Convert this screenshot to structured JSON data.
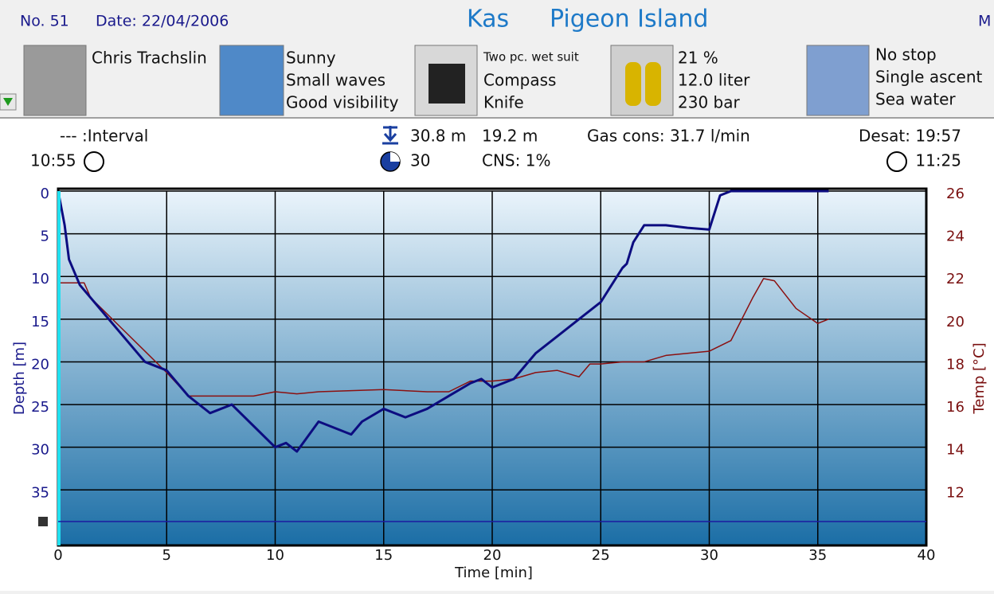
{
  "header": {
    "number": "No. 51",
    "date": "Date: 22/04/2006",
    "location": "Kas",
    "site": "Pigeon Island",
    "right": "M"
  },
  "info": [
    {
      "lines": [
        "Chris Trachslin"
      ]
    },
    {
      "lines": [
        "Sunny",
        "Small waves",
        "Good visibility"
      ]
    },
    {
      "lines": [
        "Two pc. wet suit",
        "Compass",
        "Knife"
      ]
    },
    {
      "lines": [
        "21 %",
        "12.0 liter",
        "230 bar"
      ]
    },
    {
      "lines": [
        "No stop",
        "Single ascent",
        "Sea water"
      ]
    }
  ],
  "stats": {
    "interval": "--- :Interval",
    "start": "10:55",
    "max_depth": "30.8 m",
    "avg_depth": "19.2 m",
    "duration": "30",
    "cns": "CNS:  1%",
    "gas": "Gas cons: 31.7 l/min",
    "desat": "Desat: 19:57",
    "end": "11:25"
  },
  "chart_data": {
    "type": "line",
    "xlabel": "Time [min]",
    "xlim": [
      0,
      40
    ],
    "xticks": [
      0,
      5,
      10,
      15,
      20,
      25,
      30,
      35,
      40
    ],
    "ylim": [
      0,
      41.5
    ],
    "yticks": [
      0,
      5,
      10,
      15,
      20,
      25,
      30,
      35
    ],
    "y_inverted": true,
    "y2lim": [
      9.4,
      26
    ],
    "y2ticks": [
      12,
      14,
      16,
      18,
      20,
      22,
      24,
      26
    ],
    "grid": true,
    "series": [
      {
        "name": "Depth [m]",
        "color": "#0c0c80",
        "x": [
          0,
          0.3,
          0.5,
          1,
          2,
          3,
          4,
          5,
          6,
          7,
          8,
          9,
          10,
          10.5,
          11,
          12,
          13,
          13.5,
          14,
          15,
          16,
          17,
          18,
          19,
          19.5,
          20,
          20.5,
          21,
          22,
          23,
          24,
          25,
          26,
          26.2,
          26.5,
          27,
          28,
          29,
          30,
          30.5,
          31,
          35.5
        ],
        "values": [
          0,
          4,
          8,
          11,
          14,
          17,
          20,
          21,
          24,
          26,
          25,
          27.5,
          30,
          29.5,
          30.5,
          27,
          28,
          28.5,
          27,
          25.5,
          26.5,
          25.5,
          24,
          22.5,
          22,
          23,
          22.5,
          22,
          19,
          17,
          15,
          13,
          9,
          8.5,
          6,
          4,
          4,
          4.3,
          4.5,
          0.5,
          0,
          0
        ]
      },
      {
        "name": "Temp [°C]",
        "color": "#8b1010",
        "axis": "y2",
        "x": [
          0,
          1.2,
          1.5,
          3,
          4,
          5,
          6,
          9,
          10,
          11,
          12,
          15,
          17,
          18,
          19,
          20,
          21,
          22,
          23,
          24,
          24.5,
          25,
          26,
          27,
          28,
          30,
          31,
          32,
          32.5,
          33,
          34,
          35,
          35.5
        ],
        "values": [
          21.7,
          21.7,
          21,
          19.5,
          18.5,
          17.5,
          16.4,
          16.4,
          16.6,
          16.5,
          16.6,
          16.7,
          16.6,
          16.6,
          17.1,
          17.1,
          17.2,
          17.5,
          17.6,
          17.3,
          17.9,
          17.9,
          18,
          18,
          18.3,
          18.5,
          19,
          21,
          21.9,
          21.8,
          20.5,
          19.8,
          20
        ]
      }
    ]
  }
}
